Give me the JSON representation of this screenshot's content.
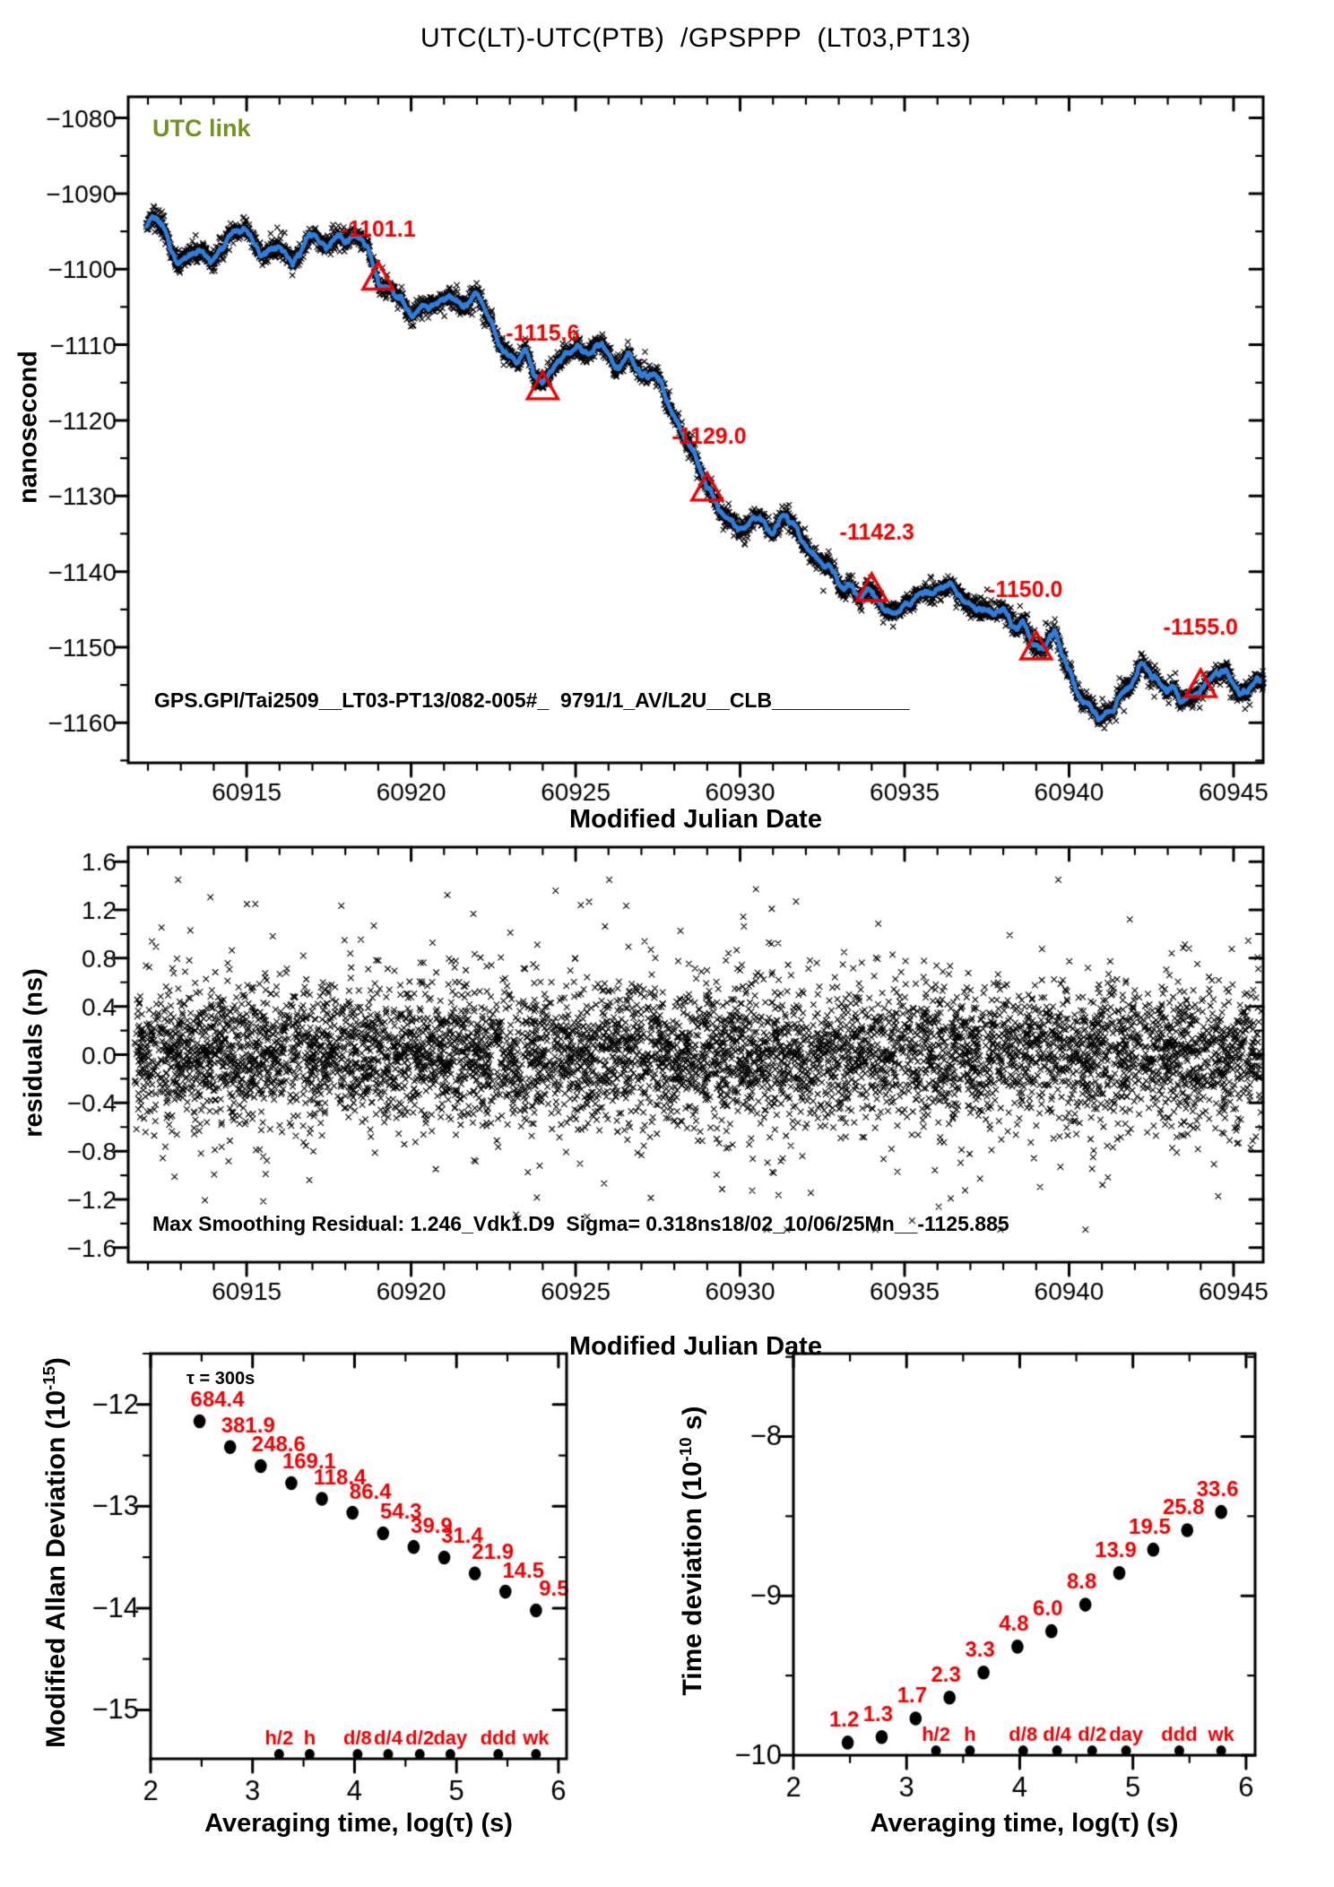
{
  "title": "UTC(LT)-UTC(PTB)  /GPSPPP  (LT03,PT13)",
  "colors": {
    "accent_red": "#ee0000",
    "line_blue": "#2e7fdd",
    "utc_link_green": "#739224",
    "ink": "#000000",
    "background": "#ffffff"
  },
  "chart_data": [
    {
      "panel": "utc_offset",
      "type": "line",
      "corner_label": "UTC link",
      "footer_label": "GPS.GPI/Tai2509__LT03-PT13/082-005#_  9791/1_AV/L2U__CLB____________",
      "xlabel": "Modified Julian Date",
      "ylabel": "nanosecond",
      "xlim": [
        60911.4,
        60945.9
      ],
      "ylim": [
        -1165.3,
        -1077.2
      ],
      "xticks": [
        60915,
        60920,
        60925,
        60930,
        60935,
        60940,
        60945
      ],
      "xtick_minor_step": 1,
      "yticks": [
        -1160,
        -1150,
        -1140,
        -1130,
        -1120,
        -1110,
        -1100,
        -1090,
        -1080
      ],
      "ytick_minor_step": 5,
      "annotations": [
        {
          "mjd": 60919,
          "value": -1101.1,
          "label": "-1101.1"
        },
        {
          "mjd": 60924,
          "value": -1115.6,
          "label": "-1115.6"
        },
        {
          "mjd": 60929,
          "value": -1129.0,
          "label": "-1129.0"
        },
        {
          "mjd": 60934,
          "value": -1142.3,
          "label": "-1142.3"
        },
        {
          "mjd": 60939,
          "value": -1150.0,
          "label": "-1150.0"
        },
        {
          "mjd": 60944,
          "value": -1155.0,
          "label": "-1155.0"
        }
      ],
      "waypoints": [
        [
          60911.95,
          -1094.2
        ],
        [
          60912.3,
          -1093.3
        ],
        [
          60912.9,
          -1099.2
        ],
        [
          60913.4,
          -1097.3
        ],
        [
          60913.9,
          -1098.8
        ],
        [
          60914.4,
          -1096.2
        ],
        [
          60914.9,
          -1094.6
        ],
        [
          60915.4,
          -1097.6
        ],
        [
          60915.9,
          -1096.8
        ],
        [
          60916.4,
          -1098.8
        ],
        [
          60916.9,
          -1095.4
        ],
        [
          60917.4,
          -1097.2
        ],
        [
          60917.9,
          -1094.9
        ],
        [
          60918.4,
          -1096.4
        ],
        [
          60918.7,
          -1097.6
        ],
        [
          60919.0,
          -1101.1
        ],
        [
          60919.4,
          -1103.2
        ],
        [
          60920.0,
          -1105.9
        ],
        [
          60920.4,
          -1104.1
        ],
        [
          60920.8,
          -1105.6
        ],
        [
          60921.2,
          -1103.7
        ],
        [
          60921.6,
          -1105.0
        ],
        [
          60922.0,
          -1103.5
        ],
        [
          60922.4,
          -1106.8
        ],
        [
          60922.8,
          -1110.2
        ],
        [
          60923.2,
          -1112.2
        ],
        [
          60923.5,
          -1110.8
        ],
        [
          60923.8,
          -1113.6
        ],
        [
          60924.0,
          -1115.6
        ],
        [
          60924.3,
          -1113.2
        ],
        [
          60924.7,
          -1111.2
        ],
        [
          60925.1,
          -1109.9
        ],
        [
          60925.5,
          -1111.6
        ],
        [
          60925.8,
          -1110.1
        ],
        [
          60926.2,
          -1112.6
        ],
        [
          60926.6,
          -1111.2
        ],
        [
          60927.0,
          -1114.0
        ],
        [
          60927.4,
          -1112.8
        ],
        [
          60927.8,
          -1117.5
        ],
        [
          60928.1,
          -1121.0
        ],
        [
          60928.5,
          -1123.3
        ],
        [
          60929.0,
          -1129.0
        ],
        [
          60929.4,
          -1131.8
        ],
        [
          60929.8,
          -1133.9
        ],
        [
          60930.2,
          -1134.3
        ],
        [
          60930.6,
          -1132.9
        ],
        [
          60931.0,
          -1134.7
        ],
        [
          60931.4,
          -1133.1
        ],
        [
          60931.8,
          -1134.8
        ],
        [
          60932.2,
          -1137.5
        ],
        [
          60932.6,
          -1139.6
        ],
        [
          60933.0,
          -1141.2
        ],
        [
          60933.4,
          -1141.8
        ],
        [
          60933.7,
          -1143.4
        ],
        [
          60934.0,
          -1142.3
        ],
        [
          60934.4,
          -1144.6
        ],
        [
          60934.8,
          -1145.6
        ],
        [
          60935.2,
          -1143.6
        ],
        [
          60935.6,
          -1141.9
        ],
        [
          60936.0,
          -1142.9
        ],
        [
          60936.4,
          -1141.6
        ],
        [
          60936.8,
          -1143.2
        ],
        [
          60937.2,
          -1144.6
        ],
        [
          60937.6,
          -1146.1
        ],
        [
          60938.0,
          -1144.9
        ],
        [
          60938.4,
          -1147.6
        ],
        [
          60938.7,
          -1148.4
        ],
        [
          60939.0,
          -1150.0
        ],
        [
          60939.3,
          -1148.3
        ],
        [
          60939.55,
          -1147.2
        ],
        [
          60939.8,
          -1150.6
        ],
        [
          60940.2,
          -1155.7
        ],
        [
          60940.6,
          -1158.2
        ],
        [
          60941.0,
          -1160.1
        ],
        [
          60941.35,
          -1158.4
        ],
        [
          60941.8,
          -1154.6
        ],
        [
          60942.2,
          -1152.6
        ],
        [
          60942.6,
          -1153.7
        ],
        [
          60943.0,
          -1155.6
        ],
        [
          60943.4,
          -1156.6
        ],
        [
          60943.8,
          -1155.7
        ],
        [
          60944.0,
          -1155.0
        ],
        [
          60944.4,
          -1153.9
        ],
        [
          60944.8,
          -1153.2
        ],
        [
          60945.2,
          -1156.1
        ],
        [
          60945.55,
          -1154.9
        ],
        [
          60945.9,
          -1154.6
        ]
      ]
    },
    {
      "panel": "residuals",
      "type": "scatter",
      "xlabel": "Modified Julian Date",
      "ylabel": "residuals (ns)",
      "xlim": [
        60911.4,
        60945.9
      ],
      "ylim": [
        -1.72,
        1.72
      ],
      "xticks": [
        60915,
        60920,
        60925,
        60930,
        60935,
        60940,
        60945
      ],
      "xtick_minor_step": 1,
      "yticks": [
        -1.6,
        -1.2,
        -0.8,
        -0.4,
        0.0,
        0.4,
        0.8,
        1.2,
        1.6
      ],
      "ytick_minor_step": 0.2,
      "sigma_ns": 0.318,
      "n_points": 6400,
      "note": "Max Smoothing Residual: 1.246_Vdk1.D9  Sigma= 0.318ns18/02_10/06/25Mn__-1125.885"
    },
    {
      "panel": "mdev",
      "type": "scatter",
      "tau_note": "τ = 300s",
      "ylabel_parts": {
        "main": "Modified Allan Deviation (10",
        "sup": "-15",
        "end": ")"
      },
      "xlabel": "Averaging time, log(τ) (s)",
      "xlim": [
        2.0,
        6.08
      ],
      "ylim": [
        -15.48,
        -11.5
      ],
      "xticks": [
        2,
        3,
        4,
        5,
        6
      ],
      "xtick_minor_step": 0.5,
      "yticks": [
        -15,
        -14,
        -13,
        -12
      ],
      "ytick_minor_step": 0.5,
      "log_tau": [
        2.48,
        2.78,
        3.08,
        3.38,
        3.68,
        3.98,
        4.28,
        4.58,
        4.88,
        5.18,
        5.48,
        5.78
      ],
      "values_1e15": [
        684.4,
        381.9,
        248.6,
        169.1,
        118.4,
        86.4,
        54.3,
        39.9,
        31.4,
        21.9,
        14.5,
        9.5
      ],
      "point_labels": [
        "684.4",
        "381.9",
        "248.6",
        "169.1",
        "118.4",
        "86.4",
        "54.3",
        "39.9",
        "31.4",
        "21.9",
        "14.5",
        "9.5"
      ],
      "timescale_marks": [
        {
          "label": "h/2",
          "log_tau": 3.26
        },
        {
          "label": "h",
          "log_tau": 3.56
        },
        {
          "label": "d/8",
          "log_tau": 4.03
        },
        {
          "label": "d/4",
          "log_tau": 4.33
        },
        {
          "label": "d/2",
          "log_tau": 4.64
        },
        {
          "label": "day",
          "log_tau": 4.94
        },
        {
          "label": "ddd",
          "log_tau": 5.41
        },
        {
          "label": "wk",
          "log_tau": 5.78
        }
      ]
    },
    {
      "panel": "tdev",
      "type": "scatter",
      "ylabel_parts": {
        "main": "Time deviation (10",
        "sup": "-10",
        "end": " s)"
      },
      "xlabel": "Averaging time, log(τ) (s)",
      "xlim": [
        2.0,
        6.08
      ],
      "ylim": [
        -10.0,
        -7.48
      ],
      "xticks": [
        2,
        3,
        4,
        5,
        6
      ],
      "xtick_minor_step": 0.5,
      "yticks": [
        -10,
        -9,
        -8
      ],
      "ytick_minor_step": 0.5,
      "log_tau": [
        2.48,
        2.78,
        3.08,
        3.38,
        3.68,
        3.98,
        4.28,
        4.58,
        4.88,
        5.18,
        5.48,
        5.78
      ],
      "values_1e10": [
        1.2,
        1.3,
        1.7,
        2.3,
        3.3,
        4.8,
        6.0,
        8.8,
        13.9,
        19.5,
        25.8,
        33.6
      ],
      "point_labels": [
        "1.2",
        "1.3",
        "1.7",
        "2.3",
        "3.3",
        "4.8",
        "6.0",
        "8.8",
        "13.9",
        "19.5",
        "25.8",
        "33.6"
      ],
      "timescale_marks": [
        {
          "label": "h/2",
          "log_tau": 3.26
        },
        {
          "label": "h",
          "log_tau": 3.56
        },
        {
          "label": "d/8",
          "log_tau": 4.03
        },
        {
          "label": "d/4",
          "log_tau": 4.33
        },
        {
          "label": "d/2",
          "log_tau": 4.64
        },
        {
          "label": "day",
          "log_tau": 4.94
        },
        {
          "label": "ddd",
          "log_tau": 5.41
        },
        {
          "label": "wk",
          "log_tau": 5.78
        }
      ]
    }
  ]
}
